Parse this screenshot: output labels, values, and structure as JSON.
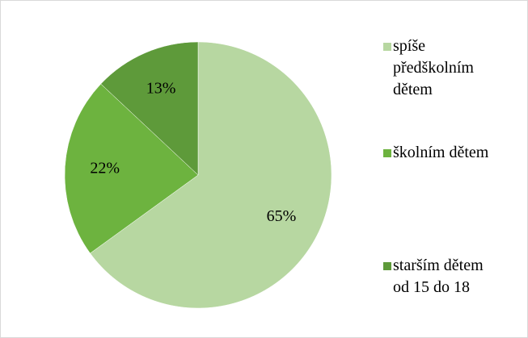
{
  "chart_data": {
    "type": "pie",
    "categories": [
      "spíše předškolním dětem",
      "školním dětem",
      "starším dětem od 15 do 18"
    ],
    "values": [
      65,
      22,
      13
    ],
    "value_labels": [
      "65%",
      "22%",
      "13%"
    ],
    "colors": [
      "#b7d7a1",
      "#6db33f",
      "#5e9a3a"
    ]
  }
}
